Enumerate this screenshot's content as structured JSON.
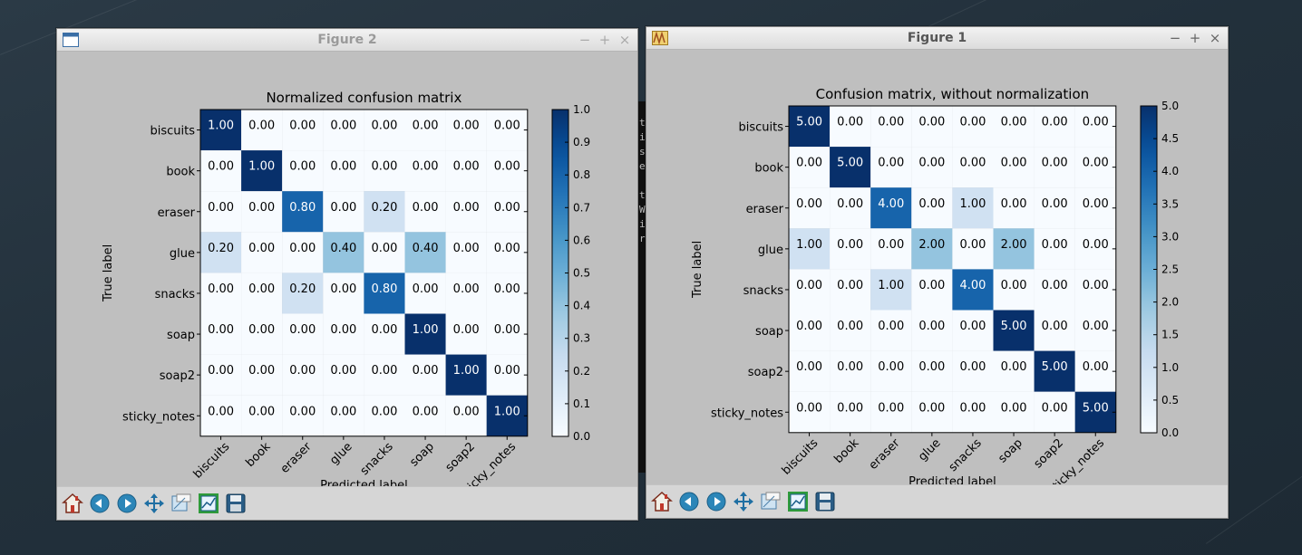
{
  "desktop": {},
  "terminal": {
    "lines": [
      "",
      "t",
      "ir",
      "s",
      "es",
      "",
      "t",
      "W",
      "i",
      "re"
    ]
  },
  "windows": [
    {
      "id": "figure2",
      "title": "Figure 2",
      "chart_data": {
        "type": "heatmap",
        "title": "Normalized confusion matrix",
        "xlabel": "Predicted label",
        "ylabel": "True label",
        "rows": [
          "biscuits",
          "book",
          "eraser",
          "glue",
          "snacks",
          "soap",
          "soap2",
          "sticky_notes"
        ],
        "cols": [
          "biscuits",
          "book",
          "eraser",
          "glue",
          "snacks",
          "soap",
          "soap2",
          "sticky_notes"
        ],
        "values": [
          [
            1.0,
            0,
            0,
            0,
            0,
            0,
            0,
            0
          ],
          [
            0,
            1.0,
            0,
            0,
            0,
            0,
            0,
            0
          ],
          [
            0,
            0,
            0.8,
            0,
            0.2,
            0,
            0,
            0
          ],
          [
            0.2,
            0,
            0,
            0.4,
            0,
            0.4,
            0,
            0
          ],
          [
            0,
            0,
            0.2,
            0,
            0.8,
            0,
            0,
            0
          ],
          [
            0,
            0,
            0,
            0,
            0,
            1.0,
            0,
            0
          ],
          [
            0,
            0,
            0,
            0,
            0,
            0,
            1.0,
            0
          ],
          [
            0,
            0,
            0,
            0,
            0,
            0,
            0,
            1.0
          ]
        ],
        "colorbar": {
          "min": 0.0,
          "max": 1.0,
          "ticks": [
            "0.0",
            "0.1",
            "0.2",
            "0.3",
            "0.4",
            "0.5",
            "0.6",
            "0.7",
            "0.8",
            "0.9",
            "1.0"
          ]
        },
        "colormap": "Blues"
      }
    },
    {
      "id": "figure1",
      "title": "Figure 1",
      "chart_data": {
        "type": "heatmap",
        "title": "Confusion matrix, without normalization",
        "xlabel": "Predicted label",
        "ylabel": "True label",
        "rows": [
          "biscuits",
          "book",
          "eraser",
          "glue",
          "snacks",
          "soap",
          "soap2",
          "sticky_notes"
        ],
        "cols": [
          "biscuits",
          "book",
          "eraser",
          "glue",
          "snacks",
          "soap",
          "soap2",
          "sticky_notes"
        ],
        "values": [
          [
            5,
            0,
            0,
            0,
            0,
            0,
            0,
            0
          ],
          [
            0,
            5,
            0,
            0,
            0,
            0,
            0,
            0
          ],
          [
            0,
            0,
            4,
            0,
            1,
            0,
            0,
            0
          ],
          [
            1,
            0,
            0,
            2,
            0,
            2,
            0,
            0
          ],
          [
            0,
            0,
            1,
            0,
            4,
            0,
            0,
            0
          ],
          [
            0,
            0,
            0,
            0,
            0,
            5,
            0,
            0
          ],
          [
            0,
            0,
            0,
            0,
            0,
            0,
            5,
            0
          ],
          [
            0,
            0,
            0,
            0,
            0,
            0,
            0,
            5
          ]
        ],
        "colorbar": {
          "min": 0.0,
          "max": 5.0,
          "ticks": [
            "0.0",
            "0.5",
            "1.0",
            "1.5",
            "2.0",
            "2.5",
            "3.0",
            "3.5",
            "4.0",
            "4.5",
            "5.0"
          ]
        },
        "colormap": "Blues"
      }
    }
  ],
  "toolbar": {
    "buttons": [
      {
        "name": "home-icon"
      },
      {
        "name": "back-icon"
      },
      {
        "name": "forward-icon"
      },
      {
        "name": "pan-icon"
      },
      {
        "name": "zoom-icon"
      },
      {
        "name": "subplots-icon"
      },
      {
        "name": "save-icon"
      }
    ]
  },
  "window_controls": {
    "minimize": "−",
    "maximize": "+",
    "close": "×"
  }
}
